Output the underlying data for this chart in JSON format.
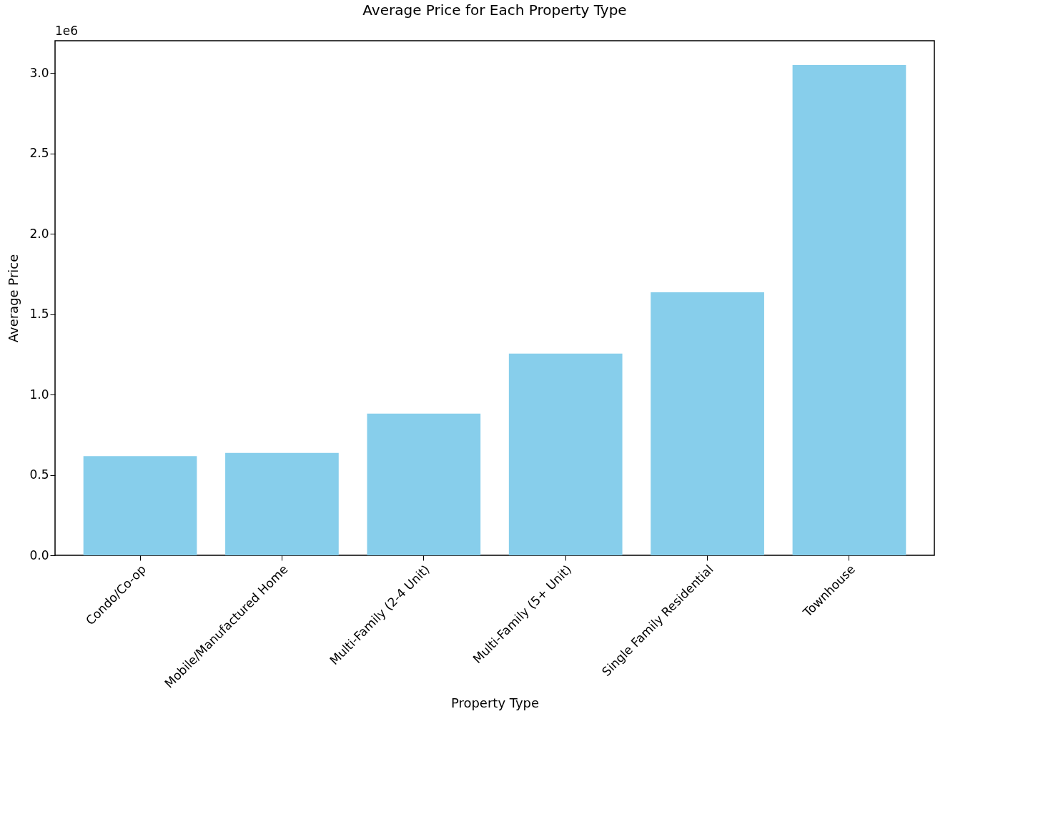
{
  "chart_data": {
    "type": "bar",
    "title": "Average Price for Each Property Type",
    "xlabel": "Property Type",
    "ylabel": "Average Price",
    "categories": [
      "Condo/Co-op",
      "Mobile/Manufactured Home",
      "Multi-Family (2-4 Unit)",
      "Multi-Family (5+ Unit)",
      "Single Family Residential",
      "Townhouse"
    ],
    "values": [
      0.617,
      0.637,
      0.881,
      1.255,
      1.636,
      3.049
    ],
    "color": "#87ceeb",
    "ylim": [
      0,
      3.2
    ],
    "yticks": [
      {
        "value": 0,
        "label": "0.0"
      },
      0.5,
      {
        "value": 1,
        "label": "1.0"
      },
      1.5,
      {
        "value": 2,
        "label": "2.0"
      },
      2.5,
      {
        "value": 3,
        "label": "3.0"
      }
    ],
    "annotations": [
      "1e6"
    ],
    "grid": false
  }
}
